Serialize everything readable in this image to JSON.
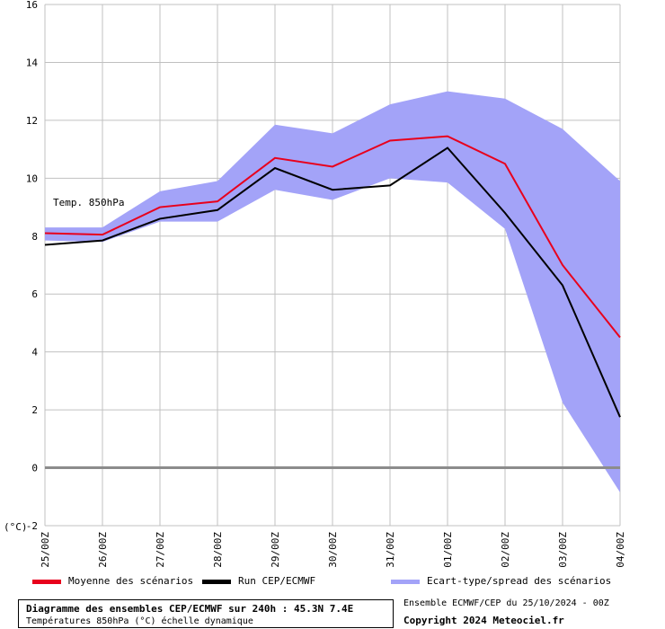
{
  "chart_data": {
    "type": "line",
    "xlabel": "",
    "ylabel": "(°C)",
    "annotation": "Temp. 850hPa",
    "ylim": [
      -2,
      16
    ],
    "yticks": [
      -2,
      0,
      2,
      4,
      6,
      8,
      10,
      12,
      14,
      16
    ],
    "x": [
      "25/00Z",
      "26/00Z",
      "27/00Z",
      "28/00Z",
      "29/00Z",
      "30/00Z",
      "31/00Z",
      "01/00Z",
      "02/00Z",
      "03/00Z",
      "04/00Z"
    ],
    "grid": true,
    "series": [
      {
        "name": "Moyenne des scénarios",
        "color": "#e8001c",
        "values": [
          8.1,
          8.05,
          9.0,
          9.2,
          10.7,
          10.4,
          11.3,
          11.45,
          10.5,
          7.0,
          4.5
        ]
      },
      {
        "name": "Run CEP/ECMWF",
        "color": "#000000",
        "values": [
          7.7,
          7.85,
          8.6,
          8.9,
          10.35,
          9.6,
          9.75,
          11.05,
          8.8,
          6.3,
          1.75
        ]
      }
    ],
    "band": {
      "name": "Ecart-type/spread des scénarios",
      "color": "#a3a3f8",
      "upper": [
        8.3,
        8.3,
        9.55,
        9.9,
        11.85,
        11.55,
        12.55,
        13.0,
        12.75,
        11.7,
        9.9
      ],
      "lower": [
        7.85,
        7.8,
        8.5,
        8.5,
        9.6,
        9.25,
        10.0,
        9.85,
        8.25,
        2.25,
        -0.85
      ]
    }
  },
  "footer": {
    "title": "Diagramme des ensembles CEP/ECMWF sur 240h : 45.3N 7.4E",
    "subtitle": "Températures 850hPa (°C) échelle dynamique",
    "source": "Ensemble ECMWF/CEP du 25/10/2024 - 00Z",
    "copyright": "Copyright 2024 Meteociel.fr"
  }
}
